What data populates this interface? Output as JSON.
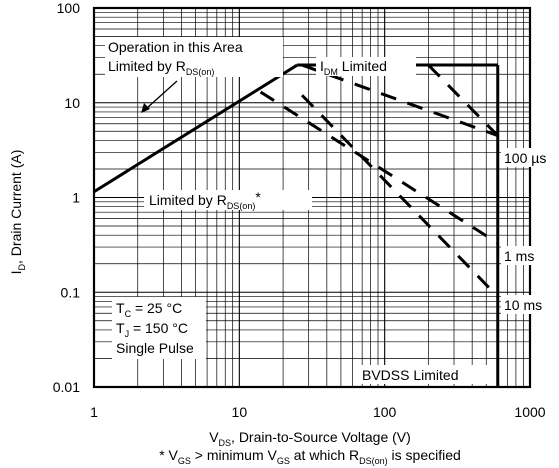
{
  "chart_data": {
    "type": "line",
    "x_scale": "log",
    "y_scale": "log",
    "xlim": [
      1,
      1000
    ],
    "ylim": [
      0.01,
      100
    ],
    "grid": true,
    "x_ticks": [
      "1",
      "10",
      "100",
      "1000"
    ],
    "y_ticks": [
      "100",
      "10",
      "1",
      "0.1",
      "0.01"
    ],
    "xlabel": {
      "prefix": "V",
      "sub": "DS",
      "rest": ", Drain-to-Source Voltage (V)"
    },
    "ylabel": {
      "prefix": "I",
      "sub": "D",
      "rest": ", Drain Current (A)"
    },
    "footnote": {
      "part1": "* V",
      "sub1": "GS",
      "part2": " > minimum V",
      "sub2": "GS",
      "part3": " at which R",
      "sub3": "DS(on)",
      "part4": " is specified"
    },
    "series": [
      {
        "style": "solid",
        "points": [
          [
            1,
            1.15
          ],
          [
            25,
            25
          ]
        ]
      },
      {
        "style": "solid",
        "points": [
          [
            25,
            25
          ],
          [
            600,
            25
          ]
        ]
      },
      {
        "style": "solid",
        "points": [
          [
            600,
            25
          ],
          [
            600,
            0.01
          ]
        ]
      },
      {
        "style": "dashed",
        "points": [
          [
            27,
            25
          ],
          [
            600,
            4.5
          ]
        ]
      },
      {
        "style": "dashed",
        "points": [
          [
            200,
            25
          ],
          [
            600,
            4.5
          ]
        ]
      },
      {
        "style": "dashed",
        "points": [
          [
            14,
            13
          ],
          [
            600,
            0.33
          ]
        ]
      },
      {
        "style": "dashed",
        "points": [
          [
            27,
            12
          ],
          [
            600,
            0.09
          ]
        ]
      }
    ],
    "annotations": {
      "operation_line1": "Operation in this Area",
      "operation_line2_prefix": "Limited by R",
      "operation_line2_sub": "DS(on)",
      "idm_prefix": "I",
      "idm_sub": "DM",
      "idm_rest": " Limited",
      "rdson_prefix": "Limited by R",
      "rdson_sub": "DS(on)",
      "rdson_rest": "*",
      "label_100us": "100 µs",
      "label_1ms": "1 ms",
      "label_10ms": "10 ms",
      "tc_prefix": "T",
      "tc_sub": "C",
      "tc_rest": " = 25 °C",
      "tj_prefix": "T",
      "tj_sub": "J",
      "tj_rest": " = 150 °C",
      "single_pulse": "Single Pulse",
      "bvdss": "BVDSS Limited"
    }
  }
}
